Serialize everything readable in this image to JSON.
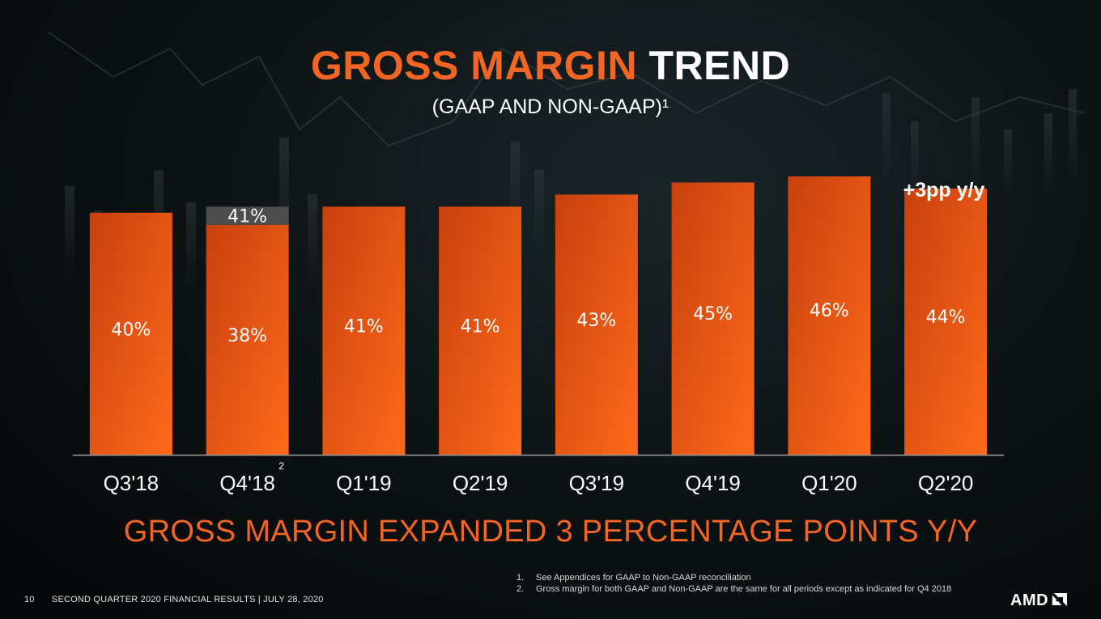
{
  "title": {
    "accent": "GROSS MARGIN",
    "plain": "TREND"
  },
  "subtitle": "(GAAP AND NON-GAAP)¹",
  "callout": "+3pp y/y",
  "headline": "GROSS MARGIN EXPANDED 3 PERCENTAGE POINTS Y/Y",
  "footnotes": [
    {
      "num": "1.",
      "text": "See Appendices for GAAP to Non-GAAP reconciliation"
    },
    {
      "num": "2.",
      "text": "Gross margin for both GAAP and Non-GAAP are the same for all periods except as indicated for Q4 2018"
    }
  ],
  "footer": {
    "page": "10",
    "text": "SECOND QUARTER 2020 FINANCIAL RESULTS  |  JULY 28, 2020"
  },
  "logo": "AMD",
  "colors": {
    "accent": "#f26522",
    "bar_top": "#c8400e",
    "bar_bottom": "#ff6a1a",
    "non_gaap": "#4d4d4d"
  },
  "chart_data": {
    "type": "bar",
    "stacked": true,
    "categories": [
      "Q3'18",
      "Q4'18",
      "Q1'19",
      "Q2'19",
      "Q3'19",
      "Q4'19",
      "Q1'20",
      "Q2'20"
    ],
    "category_superscripts": [
      "",
      "2",
      "",
      "",
      "",
      "",
      "",
      ""
    ],
    "series": [
      {
        "values": [
          40,
          38,
          41,
          41,
          43,
          45,
          46,
          44
        ],
        "labels": [
          "40%",
          "38%",
          "41%",
          "41%",
          "43%",
          "45%",
          "46%",
          "44%"
        ],
        "color": "#f26522"
      },
      {
        "values": [
          0,
          3,
          0,
          0,
          0,
          0,
          0,
          0
        ],
        "labels": [
          "",
          "41%",
          "",
          "",
          "",
          "",
          "",
          ""
        ],
        "color": "#4d4d4d"
      }
    ],
    "ylim": [
      0,
      46
    ],
    "grid": false,
    "legend": "none"
  }
}
